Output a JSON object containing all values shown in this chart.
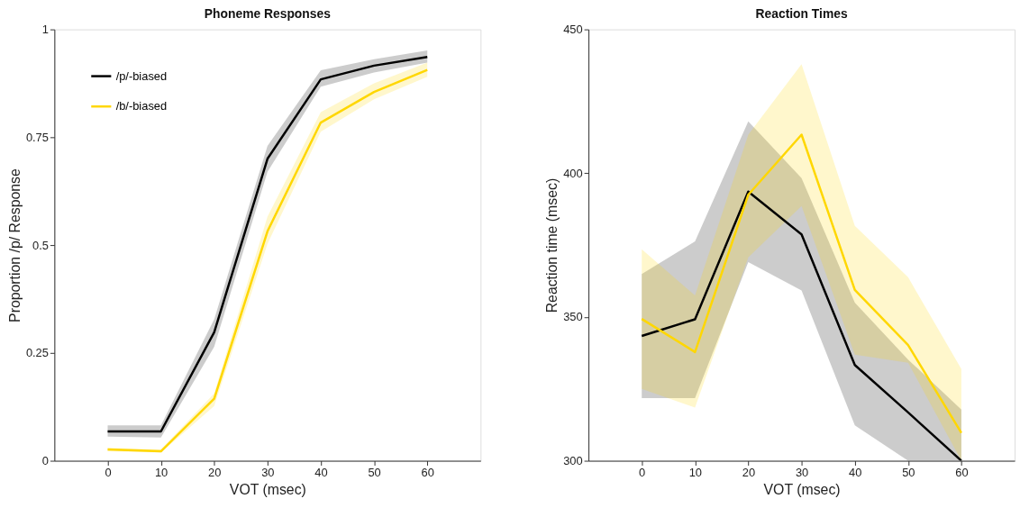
{
  "chart_data": [
    {
      "type": "line",
      "title": "Phoneme Responses",
      "xlabel": "VOT (msec)",
      "ylabel": "Proportion /p/ Response",
      "xlim": [
        -10,
        70
      ],
      "xticks": [
        0,
        10,
        20,
        30,
        40,
        50,
        60
      ],
      "ylim": [
        0,
        1
      ],
      "yticks": [
        0,
        0.25,
        0.5,
        0.75,
        1
      ],
      "grid": false,
      "legend": "top left",
      "marker": "none",
      "line_style": "solid",
      "series": [
        {
          "name": "/p/-biased",
          "color": "#000000",
          "x": [
            0,
            10,
            20,
            30,
            40,
            50,
            60
          ],
          "values": [
            0.068,
            0.068,
            0.298,
            0.7,
            0.884,
            0.916,
            0.936
          ],
          "lower": [
            0.056,
            0.054,
            0.264,
            0.67,
            0.867,
            0.9,
            0.923
          ],
          "upper": [
            0.082,
            0.082,
            0.328,
            0.73,
            0.905,
            0.931,
            0.951
          ]
        },
        {
          "name": "/b/-biased",
          "color": "#ffd700",
          "x": [
            0,
            10,
            20,
            30,
            40,
            50,
            60
          ],
          "values": [
            0.026,
            0.022,
            0.144,
            0.532,
            0.784,
            0.855,
            0.906
          ],
          "lower": [
            0.022,
            0.019,
            0.127,
            0.503,
            0.763,
            0.838,
            0.89
          ],
          "upper": [
            0.03,
            0.026,
            0.156,
            0.566,
            0.808,
            0.875,
            0.923
          ]
        }
      ]
    },
    {
      "type": "line",
      "title": "Reaction Times",
      "xlabel": "VOT (msec)",
      "ylabel": "Reaction time (msec)",
      "xlim": [
        -10,
        70
      ],
      "xticks": [
        0,
        10,
        20,
        30,
        40,
        50,
        60
      ],
      "ylim": [
        300,
        450
      ],
      "yticks": [
        300,
        350,
        400,
        450
      ],
      "grid": false,
      "legend": false,
      "marker": "none",
      "line_style": "solid",
      "series": [
        {
          "color": "#000000",
          "x": [
            0,
            10,
            20,
            30,
            40,
            50,
            60
          ],
          "values": [
            343.4,
            349.2,
            393.6,
            378.7,
            333.3,
            316.8,
            300
          ],
          "lower": [
            321.8,
            321.8,
            369.1,
            359.2,
            312.3,
            300,
            300
          ],
          "upper": [
            364.9,
            376.3,
            418,
            398.3,
            355,
            335.2,
            317.8
          ]
        },
        {
          "color": "#ffd700",
          "x": [
            0,
            10,
            20,
            30,
            40,
            50,
            60
          ],
          "values": [
            349.3,
            337.8,
            392.5,
            413.4,
            359.4,
            340.2,
            309.7
          ],
          "lower": [
            325,
            318.5,
            370.7,
            388.6,
            336.9,
            334.1,
            300
          ],
          "upper": [
            373.5,
            357.5,
            413.4,
            437.9,
            381.7,
            363.8,
            331.9
          ]
        }
      ]
    }
  ]
}
